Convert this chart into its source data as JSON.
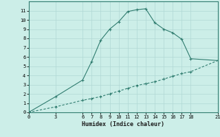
{
  "xlabel": "Humidex (Indice chaleur)",
  "background_color": "#cceee8",
  "grid_color": "#b0d8d4",
  "line_color": "#2e7b6e",
  "xlim": [
    0,
    21
  ],
  "ylim": [
    0,
    12
  ],
  "x_ticks": [
    0,
    3,
    6,
    7,
    8,
    9,
    10,
    11,
    12,
    13,
    14,
    15,
    16,
    17,
    18,
    21
  ],
  "y_ticks": [
    0,
    1,
    2,
    3,
    4,
    5,
    6,
    7,
    8,
    9,
    10,
    11
  ],
  "curve_x": [
    0,
    3,
    6,
    7,
    8,
    9,
    10,
    11,
    12,
    13,
    14,
    15,
    16,
    17,
    18,
    21
  ],
  "curve_y": [
    0,
    1.7,
    3.5,
    5.5,
    7.8,
    9.0,
    9.8,
    10.9,
    11.1,
    11.2,
    9.7,
    9.0,
    8.6,
    7.9,
    5.8,
    5.6
  ],
  "linear_x": [
    0,
    3,
    6,
    7,
    8,
    9,
    10,
    11,
    12,
    13,
    14,
    15,
    16,
    17,
    18,
    21
  ],
  "linear_y": [
    0,
    0.6,
    1.3,
    1.5,
    1.7,
    2.0,
    2.3,
    2.6,
    2.9,
    3.1,
    3.3,
    3.6,
    3.9,
    4.2,
    4.4,
    5.6
  ]
}
